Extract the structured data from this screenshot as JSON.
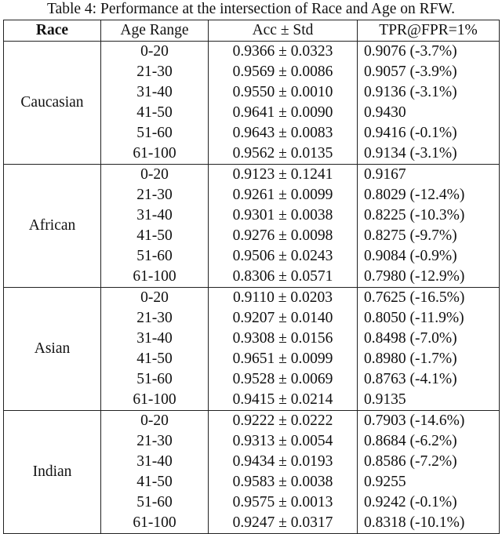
{
  "table": {
    "caption": "Table 4: Performance at the intersection of Race and Age on RFW.",
    "header": [
      "Race",
      "Age Range",
      "Acc ± Std",
      "TPR@FPR=1%"
    ],
    "groups": [
      {
        "race": "Caucasian",
        "rows": [
          [
            "0-20",
            "0.9366 ± 0.0323",
            "0.9076 (-3.7%)"
          ],
          [
            "21-30",
            "0.9569 ± 0.0086",
            "0.9057 (-3.9%)"
          ],
          [
            "31-40",
            "0.9550 ± 0.0010",
            "0.9136 (-3.1%)"
          ],
          [
            "41-50",
            "0.9641 ± 0.0090",
            "0.9430"
          ],
          [
            "51-60",
            "0.9643 ± 0.0083",
            "0.9416 (-0.1%)"
          ],
          [
            "61-100",
            "0.9562 ± 0.0135",
            "0.9134 (-3.1%)"
          ]
        ]
      },
      {
        "race": "African",
        "rows": [
          [
            "0-20",
            "0.9123 ± 0.1241",
            "0.9167"
          ],
          [
            "21-30",
            "0.9261 ± 0.0099",
            "0.8029 (-12.4%)"
          ],
          [
            "31-40",
            "0.9301 ± 0.0038",
            "0.8225 (-10.3%)"
          ],
          [
            "41-50",
            "0.9276 ± 0.0098",
            "0.8275 (-9.7%)"
          ],
          [
            "51-60",
            "0.9506 ± 0.0243",
            "0.9084 (-0.9%)"
          ],
          [
            "61-100",
            "0.8306 ± 0.0571",
            "0.7980 (-12.9%)"
          ]
        ]
      },
      {
        "race": "Asian",
        "rows": [
          [
            "0-20",
            "0.9110 ± 0.0203",
            "0.7625 (-16.5%)"
          ],
          [
            "21-30",
            "0.9207 ± 0.0140",
            "0.8050 (-11.9%)"
          ],
          [
            "31-40",
            "0.9308 ± 0.0156",
            "0.8498 (-7.0%)"
          ],
          [
            "41-50",
            "0.9651 ± 0.0099",
            "0.8980 (-1.7%)"
          ],
          [
            "51-60",
            "0.9528 ± 0.0069",
            "0.8763 (-4.1%)"
          ],
          [
            "61-100",
            "0.9415 ± 0.0214",
            "0.9135"
          ]
        ]
      },
      {
        "race": "Indian",
        "rows": [
          [
            "0-20",
            "0.9222 ± 0.0222",
            "0.7903 (-14.6%)"
          ],
          [
            "21-30",
            "0.9313 ± 0.0054",
            "0.8684 (-6.2%)"
          ],
          [
            "31-40",
            "0.9434 ± 0.0193",
            "0.8586 (-7.2%)"
          ],
          [
            "41-50",
            "0.9583 ± 0.0038",
            "0.9255"
          ],
          [
            "51-60",
            "0.9575 ± 0.0013",
            "0.9242 (-0.1%)"
          ],
          [
            "61-100",
            "0.9247 ± 0.0317",
            "0.8318 (-10.1%)"
          ]
        ]
      }
    ]
  }
}
